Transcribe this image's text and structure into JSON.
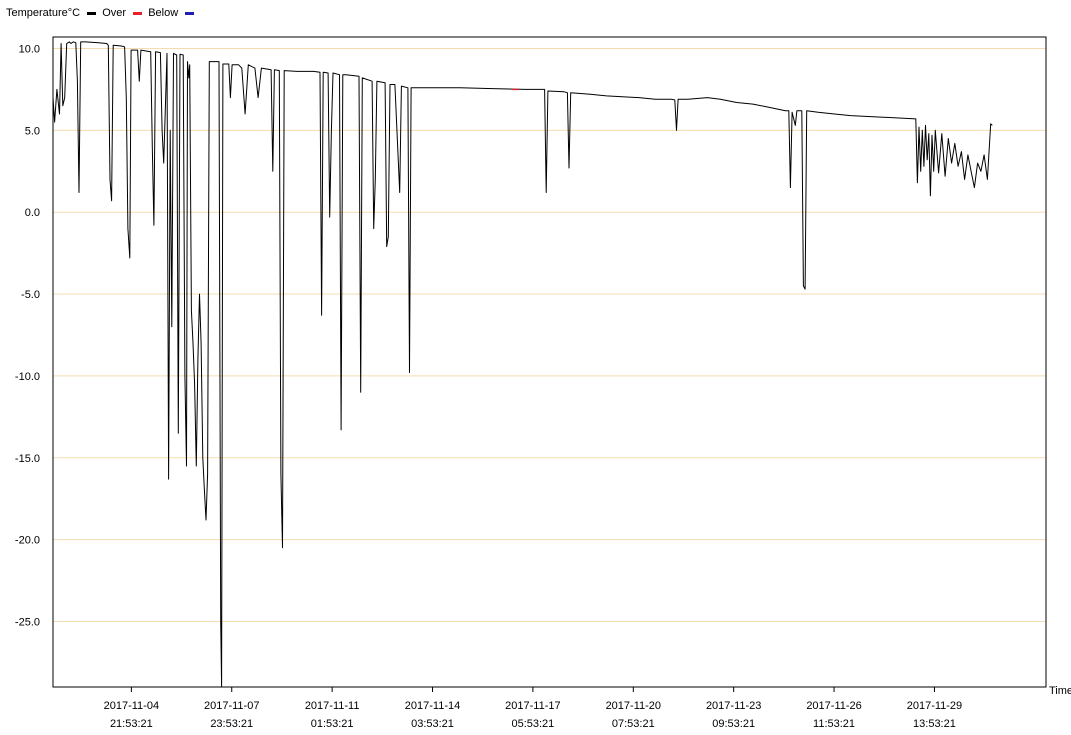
{
  "chart_data": {
    "type": "line",
    "legend": {
      "placement": "top-left",
      "title": "Temperature°C",
      "entries": [
        {
          "label": "Over",
          "color": "#000000"
        },
        {
          "label": "Below",
          "color": "#e8202a"
        },
        {
          "label": "",
          "color": "#1f1fb4"
        }
      ],
      "below_label": "Below"
    },
    "xlabel": "Time",
    "ylim": [
      -29.0,
      10.7
    ],
    "yticks": [
      "10.0",
      "5.0",
      "0.0",
      "-5.0",
      "-10.0",
      "-15.0",
      "-20.0",
      "-25.0"
    ],
    "grid": {
      "horizontal": true,
      "color": "#f3ddb0"
    },
    "xticks": [
      {
        "date": "2017-11-04",
        "time": "21:53:21",
        "x": 3.907
      },
      {
        "date": "2017-11-07",
        "time": "23:53:21",
        "x": 6.99
      },
      {
        "date": "2017-11-11",
        "time": "01:53:21",
        "x": 10.074
      },
      {
        "date": "2017-11-14",
        "time": "03:53:21",
        "x": 13.157
      },
      {
        "date": "2017-11-17",
        "time": "05:53:21",
        "x": 16.24
      },
      {
        "date": "2017-11-20",
        "time": "07:53:21",
        "x": 19.324
      },
      {
        "date": "2017-11-23",
        "time": "09:53:21",
        "x": 22.407
      },
      {
        "date": "2017-11-26",
        "time": "11:53:21",
        "x": 25.49
      },
      {
        "date": "2017-11-29",
        "time": "13:53:21",
        "x": 28.574
      }
    ],
    "xlim": [
      1.5,
      32.0
    ],
    "x_unit": "day of November 2017 (fractional)",
    "series": [
      {
        "name": "Over",
        "color": "#000000",
        "points": [
          [
            1.5,
            7.0
          ],
          [
            1.55,
            5.5
          ],
          [
            1.62,
            7.5
          ],
          [
            1.7,
            6.0
          ],
          [
            1.75,
            10.3
          ],
          [
            1.8,
            6.5
          ],
          [
            1.86,
            7.0
          ],
          [
            1.92,
            10.3
          ],
          [
            2.0,
            10.4
          ],
          [
            2.05,
            10.3
          ],
          [
            2.12,
            10.4
          ],
          [
            2.2,
            10.35
          ],
          [
            2.25,
            8.0
          ],
          [
            2.3,
            1.2
          ],
          [
            2.35,
            10.4
          ],
          [
            2.5,
            10.4
          ],
          [
            2.9,
            10.35
          ],
          [
            3.15,
            10.3
          ],
          [
            3.2,
            10.2
          ],
          [
            3.25,
            2.0
          ],
          [
            3.3,
            0.7
          ],
          [
            3.35,
            10.2
          ],
          [
            3.6,
            10.15
          ],
          [
            3.7,
            10.1
          ],
          [
            3.75,
            7.0
          ],
          [
            3.8,
            -1.0
          ],
          [
            3.86,
            -2.8
          ],
          [
            3.9,
            9.9
          ],
          [
            4.1,
            9.9
          ],
          [
            4.15,
            8.0
          ],
          [
            4.2,
            9.9
          ],
          [
            4.5,
            9.8
          ],
          [
            4.55,
            4.0
          ],
          [
            4.6,
            -0.8
          ],
          [
            4.65,
            9.8
          ],
          [
            4.8,
            9.75
          ],
          [
            4.85,
            5.0
          ],
          [
            4.9,
            3.0
          ],
          [
            5.0,
            9.7
          ],
          [
            5.05,
            -16.3
          ],
          [
            5.1,
            5.0
          ],
          [
            5.15,
            -7.0
          ],
          [
            5.2,
            9.7
          ],
          [
            5.3,
            9.6
          ],
          [
            5.35,
            -13.5
          ],
          [
            5.4,
            9.65
          ],
          [
            5.5,
            9.6
          ],
          [
            5.55,
            -10.0
          ],
          [
            5.6,
            -15.5
          ],
          [
            5.63,
            9.2
          ],
          [
            5.67,
            8.2
          ],
          [
            5.7,
            9.0
          ],
          [
            5.75,
            -6.0
          ],
          [
            5.8,
            -8.0
          ],
          [
            5.85,
            -10.5
          ],
          [
            5.9,
            -15.5
          ],
          [
            5.95,
            -9.0
          ],
          [
            6.0,
            -5.0
          ],
          [
            6.05,
            -8.0
          ],
          [
            6.1,
            -15.0
          ],
          [
            6.15,
            -17.0
          ],
          [
            6.2,
            -18.8
          ],
          [
            6.25,
            -16.0
          ],
          [
            6.3,
            9.2
          ],
          [
            6.6,
            9.2
          ],
          [
            6.65,
            -25.0
          ],
          [
            6.68,
            -29.0
          ],
          [
            6.72,
            9.05
          ],
          [
            6.9,
            9.05
          ],
          [
            6.95,
            7.0
          ],
          [
            7.0,
            9.0
          ],
          [
            7.2,
            9.0
          ],
          [
            7.3,
            8.8
          ],
          [
            7.4,
            6.0
          ],
          [
            7.5,
            9.0
          ],
          [
            7.7,
            8.8
          ],
          [
            7.8,
            7.0
          ],
          [
            7.9,
            8.8
          ],
          [
            8.2,
            8.7
          ],
          [
            8.25,
            2.5
          ],
          [
            8.3,
            8.7
          ],
          [
            8.45,
            8.65
          ],
          [
            8.5,
            -16.0
          ],
          [
            8.55,
            -20.5
          ],
          [
            8.6,
            8.65
          ],
          [
            9.0,
            8.6
          ],
          [
            9.5,
            8.6
          ],
          [
            9.7,
            8.55
          ],
          [
            9.75,
            -6.3
          ],
          [
            9.8,
            8.55
          ],
          [
            9.95,
            8.5
          ],
          [
            10.0,
            -0.3
          ],
          [
            10.05,
            5.0
          ],
          [
            10.1,
            8.5
          ],
          [
            10.3,
            8.4
          ],
          [
            10.35,
            -13.3
          ],
          [
            10.4,
            8.4
          ],
          [
            10.5,
            8.4
          ],
          [
            10.9,
            8.3
          ],
          [
            10.95,
            -11.0
          ],
          [
            11.0,
            8.2
          ],
          [
            11.3,
            8.0
          ],
          [
            11.35,
            -1.0
          ],
          [
            11.4,
            2.0
          ],
          [
            11.45,
            8.0
          ],
          [
            11.7,
            7.9
          ],
          [
            11.75,
            -2.1
          ],
          [
            11.8,
            -1.5
          ],
          [
            11.85,
            7.8
          ],
          [
            12.0,
            7.8
          ],
          [
            12.15,
            1.2
          ],
          [
            12.2,
            7.7
          ],
          [
            12.4,
            7.6
          ],
          [
            12.45,
            -9.8
          ],
          [
            12.5,
            7.6
          ],
          [
            13.0,
            7.6
          ],
          [
            14.0,
            7.6
          ],
          [
            15.0,
            7.55
          ],
          [
            16.0,
            7.5
          ],
          [
            16.6,
            7.5
          ],
          [
            16.65,
            1.2
          ],
          [
            16.7,
            7.4
          ],
          [
            17.2,
            7.35
          ],
          [
            17.3,
            7.3
          ],
          [
            17.35,
            2.7
          ],
          [
            17.4,
            7.3
          ],
          [
            18.0,
            7.2
          ],
          [
            18.5,
            7.1
          ],
          [
            19.5,
            7.0
          ],
          [
            20.0,
            6.9
          ],
          [
            20.5,
            6.9
          ],
          [
            20.6,
            6.85
          ],
          [
            20.65,
            5.0
          ],
          [
            20.7,
            6.9
          ],
          [
            21.0,
            6.9
          ],
          [
            21.6,
            7.0
          ],
          [
            22.0,
            6.9
          ],
          [
            22.5,
            6.7
          ],
          [
            23.0,
            6.6
          ],
          [
            23.5,
            6.4
          ],
          [
            24.0,
            6.2
          ],
          [
            24.1,
            6.2
          ],
          [
            24.15,
            1.5
          ],
          [
            24.2,
            6.1
          ],
          [
            24.3,
            5.3
          ],
          [
            24.35,
            6.2
          ],
          [
            24.5,
            6.2
          ],
          [
            24.55,
            -4.5
          ],
          [
            24.6,
            -4.7
          ],
          [
            24.65,
            6.2
          ],
          [
            25.0,
            6.1
          ],
          [
            25.5,
            6.0
          ],
          [
            26.0,
            5.9
          ],
          [
            27.0,
            5.8
          ],
          [
            28.0,
            5.7
          ],
          [
            28.05,
            1.8
          ],
          [
            28.1,
            5.2
          ],
          [
            28.15,
            2.5
          ],
          [
            28.2,
            5.0
          ],
          [
            28.25,
            2.8
          ],
          [
            28.3,
            5.3
          ],
          [
            28.35,
            3.2
          ],
          [
            28.4,
            4.8
          ],
          [
            28.45,
            1.0
          ],
          [
            28.5,
            4.7
          ],
          [
            28.55,
            2.5
          ],
          [
            28.6,
            5.0
          ],
          [
            28.7,
            2.4
          ],
          [
            28.8,
            4.8
          ],
          [
            28.9,
            2.2
          ],
          [
            29.0,
            4.5
          ],
          [
            29.1,
            3.0
          ],
          [
            29.2,
            4.2
          ],
          [
            29.3,
            2.8
          ],
          [
            29.4,
            3.7
          ],
          [
            29.5,
            2.0
          ],
          [
            29.6,
            3.5
          ],
          [
            29.7,
            2.5
          ],
          [
            29.8,
            1.5
          ],
          [
            29.9,
            3.0
          ],
          [
            30.0,
            2.5
          ],
          [
            30.1,
            3.5
          ],
          [
            30.2,
            2.0
          ],
          [
            30.3,
            5.4
          ],
          [
            30.35,
            5.3
          ]
        ]
      }
    ],
    "below_markers": [
      [
        15.7,
        7.5
      ]
    ]
  }
}
